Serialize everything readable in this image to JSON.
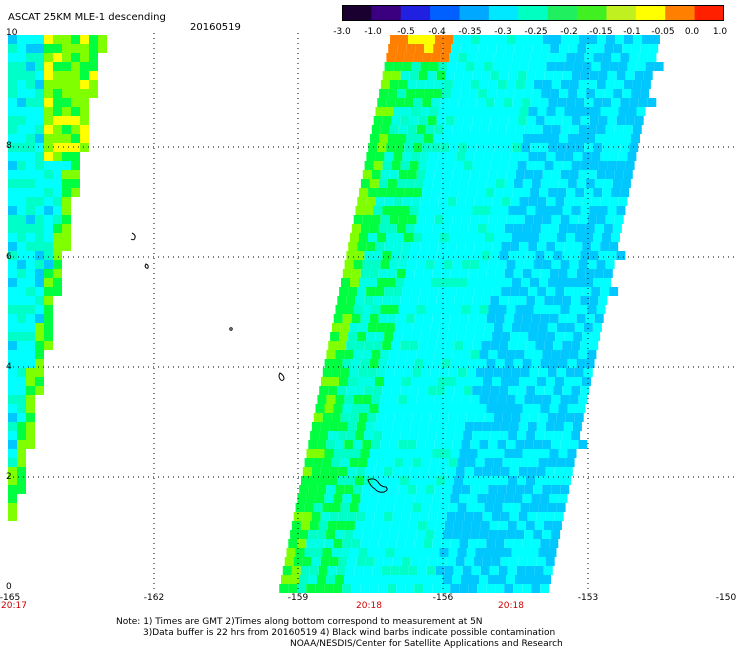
{
  "header": {
    "title": "ASCAT 25KM MLE-1 descending",
    "date": "20160519"
  },
  "colorbar": {
    "tick_labels": [
      "-3.0",
      "-1.0",
      "-0.5",
      "-0.4",
      "-0.35",
      "-0.3",
      "-0.25",
      "-0.2",
      "-0.15",
      "-0.1",
      "-0.05",
      "0.0",
      "1.0"
    ],
    "colors": [
      "#1a0030",
      "#3a0080",
      "#2020e0",
      "#0060ff",
      "#00a8ff",
      "#00e8ff",
      "#00ffc0",
      "#20f060",
      "#40f020",
      "#c0f020",
      "#ffff00",
      "#ff8000",
      "#ff2000"
    ]
  },
  "map": {
    "x_labels": [
      "-165",
      "-162",
      "-159",
      "-156",
      "-153",
      "-150"
    ],
    "y_labels": [
      "0",
      "2",
      "4",
      "6",
      "8",
      "10"
    ],
    "time_labels": [
      "20:17",
      "20:18",
      "20:18"
    ],
    "time_label_color": "#cc0000",
    "grid": "dotted",
    "data_colors": {
      "cyan": "#00ffff",
      "cyan_green": "#00ffc8",
      "aqua": "#00ffe4",
      "blue_light": "#00c8ff",
      "blue": "#00a0ff",
      "green": "#00ff40",
      "green_yellow": "#80ff00",
      "yellow": "#ffff00",
      "orange": "#ff8000"
    }
  },
  "notes": {
    "line1": "Note: 1) Times are GMT 2)Times along bottom correspond to measurement at 5N",
    "line2": "3)Data buffer is 22 hrs from 20160519 4) Black wind barbs indicate possible contamination",
    "line3": "NOAA/NESDIS/Center for Satellite Applications and Research"
  }
}
